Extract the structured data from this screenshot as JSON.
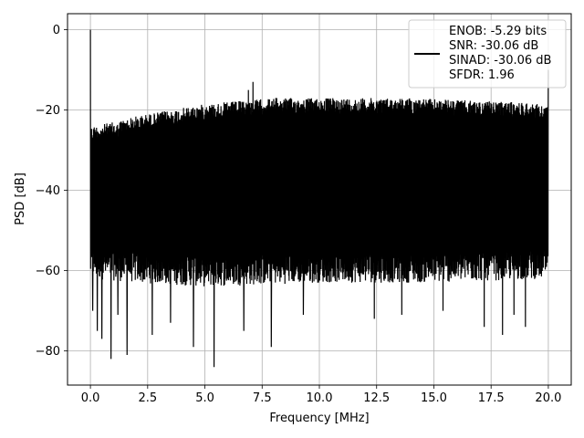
{
  "chart_data": {
    "type": "line",
    "title": "",
    "xlabel": "Frequency [MHz]",
    "ylabel": "PSD [dB]",
    "xlim": [
      -1.0,
      21.0
    ],
    "ylim": [
      -88.5,
      4.0
    ],
    "x_ticks": [
      0.0,
      2.5,
      5.0,
      7.5,
      10.0,
      12.5,
      15.0,
      17.5,
      20.0
    ],
    "x_tick_labels": [
      "0.0",
      "2.5",
      "5.0",
      "7.5",
      "10.0",
      "12.5",
      "15.0",
      "17.5",
      "20.0"
    ],
    "y_ticks": [
      0,
      -20,
      -40,
      -60,
      -80
    ],
    "y_tick_labels": [
      "0",
      "−20",
      "−40",
      "−60",
      "−80"
    ],
    "grid": true,
    "legend_position": "top-right",
    "line_color": "#000000",
    "series": [
      {
        "values_note": "dense noise spectrum, 0-20 MHz",
        "x_range": [
          0.0,
          20.0
        ],
        "upper_envelope": [
          {
            "x": 0.05,
            "y": -24
          },
          {
            "x": 1.0,
            "y": -23
          },
          {
            "x": 2.0,
            "y": -21.5
          },
          {
            "x": 3.0,
            "y": -20.5
          },
          {
            "x": 4.0,
            "y": -19.5
          },
          {
            "x": 5.0,
            "y": -18.5
          },
          {
            "x": 6.0,
            "y": -18
          },
          {
            "x": 7.0,
            "y": -17.5
          },
          {
            "x": 8.0,
            "y": -17
          },
          {
            "x": 10.0,
            "y": -17
          },
          {
            "x": 12.0,
            "y": -17
          },
          {
            "x": 14.0,
            "y": -17
          },
          {
            "x": 16.0,
            "y": -17.5
          },
          {
            "x": 18.0,
            "y": -18
          },
          {
            "x": 19.0,
            "y": -18
          },
          {
            "x": 20.0,
            "y": -19
          }
        ],
        "lower_envelope": [
          {
            "x": 0.05,
            "y": -62
          },
          {
            "x": 2.0,
            "y": -63
          },
          {
            "x": 5.0,
            "y": -64
          },
          {
            "x": 10.0,
            "y": -63
          },
          {
            "x": 15.0,
            "y": -63
          },
          {
            "x": 20.0,
            "y": -62
          }
        ],
        "peaks": [
          {
            "x": 0.0,
            "y": 0
          },
          {
            "x": 6.1,
            "y": -19
          },
          {
            "x": 6.7,
            "y": -14
          },
          {
            "x": 6.9,
            "y": -15
          },
          {
            "x": 7.1,
            "y": -13
          },
          {
            "x": 8.1,
            "y": -17
          },
          {
            "x": 20.0,
            "y": -10
          }
        ],
        "dips": [
          {
            "x": 0.1,
            "y": -70
          },
          {
            "x": 0.3,
            "y": -75
          },
          {
            "x": 0.5,
            "y": -77
          },
          {
            "x": 0.9,
            "y": -82
          },
          {
            "x": 1.2,
            "y": -71
          },
          {
            "x": 1.6,
            "y": -81
          },
          {
            "x": 2.7,
            "y": -76
          },
          {
            "x": 3.5,
            "y": -73
          },
          {
            "x": 4.5,
            "y": -79
          },
          {
            "x": 5.4,
            "y": -84
          },
          {
            "x": 6.7,
            "y": -75
          },
          {
            "x": 7.9,
            "y": -79
          },
          {
            "x": 9.3,
            "y": -71
          },
          {
            "x": 12.4,
            "y": -72
          },
          {
            "x": 13.6,
            "y": -71
          },
          {
            "x": 15.4,
            "y": -70
          },
          {
            "x": 17.2,
            "y": -74
          },
          {
            "x": 18.0,
            "y": -76
          },
          {
            "x": 18.5,
            "y": -71
          },
          {
            "x": 19.0,
            "y": -74
          }
        ]
      }
    ],
    "legend": {
      "line_color": "#000000",
      "entries": [
        "ENOB: -5.29 bits",
        "SNR: -30.06 dB",
        "SINAD: -30.06 dB",
        "SFDR: 1.96"
      ]
    }
  }
}
